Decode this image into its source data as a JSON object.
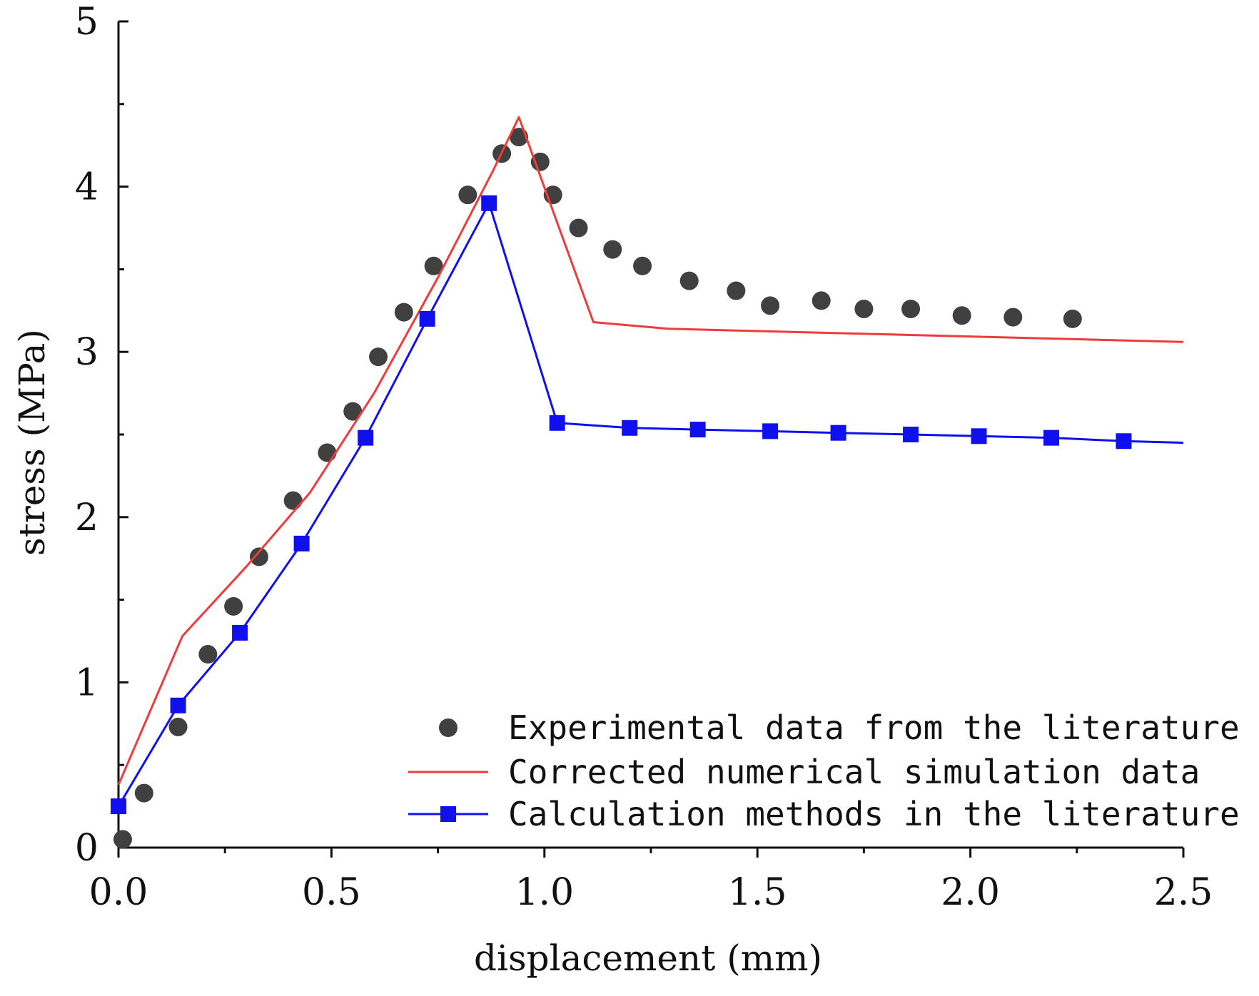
{
  "chart_data": {
    "type": "line",
    "title": "",
    "xlabel": "displacement (mm)",
    "ylabel": "stress (MPa)",
    "xlim": [
      0,
      2.5
    ],
    "ylim": [
      0,
      5
    ],
    "xticks": [
      0.0,
      0.5,
      1.0,
      1.5,
      2.0,
      2.5
    ],
    "xtick_labels": [
      "0.0",
      "0.5",
      "1.0",
      "1.5",
      "2.0",
      "2.5"
    ],
    "yticks": [
      0,
      1,
      2,
      3,
      4,
      5
    ],
    "ytick_labels": [
      "0",
      "1",
      "2",
      "3",
      "4",
      "5"
    ],
    "grid": false,
    "legend_position": "bottom-right",
    "series": [
      {
        "name": "Experimental data from the literature",
        "style": "scatter",
        "marker": "circle",
        "color": "#404040",
        "x": [
          0.01,
          0.06,
          0.14,
          0.21,
          0.27,
          0.33,
          0.41,
          0.49,
          0.55,
          0.61,
          0.67,
          0.74,
          0.82,
          0.9,
          0.94,
          0.99,
          1.02,
          1.08,
          1.16,
          1.23,
          1.34,
          1.45,
          1.53,
          1.65,
          1.75,
          1.86,
          1.98,
          2.1,
          2.24
        ],
        "y": [
          0.05,
          0.33,
          0.73,
          1.17,
          1.46,
          1.76,
          2.1,
          2.39,
          2.64,
          2.97,
          3.24,
          3.52,
          3.95,
          4.2,
          4.3,
          4.15,
          3.95,
          3.75,
          3.62,
          3.52,
          3.43,
          3.37,
          3.28,
          3.31,
          3.26,
          3.26,
          3.22,
          3.21,
          3.2
        ]
      },
      {
        "name": "Corrected numerical simulation data",
        "style": "line",
        "color": "#ee3b3b",
        "x": [
          0.0,
          0.15,
          0.3,
          0.45,
          0.6,
          0.75,
          0.82,
          0.88,
          0.94,
          1.115,
          1.29,
          2.5
        ],
        "y": [
          0.38,
          1.28,
          1.7,
          2.15,
          2.75,
          3.45,
          3.8,
          4.1,
          4.42,
          3.18,
          3.14,
          3.06
        ]
      },
      {
        "name": "Calculation methods in the literature",
        "style": "line+marker",
        "marker": "square",
        "color": "#1010ee",
        "x": [
          0.0,
          0.14,
          0.285,
          0.43,
          0.58,
          0.725,
          0.87,
          1.03,
          1.2,
          1.36,
          1.53,
          1.69,
          1.86,
          2.02,
          2.19,
          2.36,
          2.5
        ],
        "y": [
          0.25,
          0.86,
          1.3,
          1.84,
          2.48,
          3.2,
          3.9,
          2.57,
          2.54,
          2.53,
          2.52,
          2.51,
          2.5,
          2.49,
          2.48,
          2.46,
          2.45
        ]
      }
    ]
  }
}
